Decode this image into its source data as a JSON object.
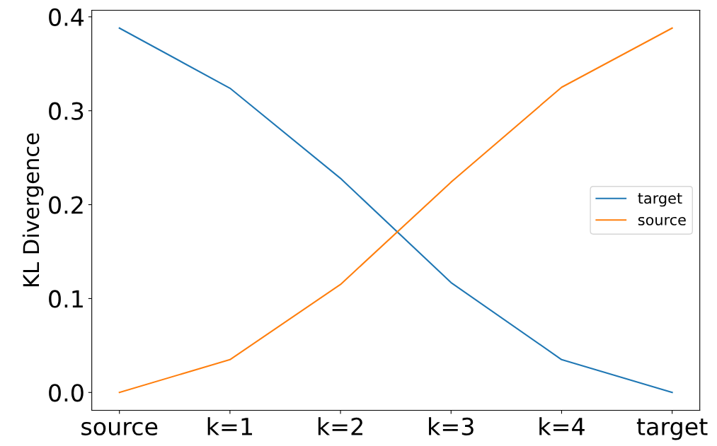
{
  "chart_data": {
    "type": "line",
    "ylabel": "KL Divergence",
    "categories": [
      "source",
      "k=1",
      "k=2",
      "k=3",
      "k=4",
      "target"
    ],
    "series": [
      {
        "name": "target",
        "color": "#1f77b4",
        "values": [
          0.388,
          0.324,
          0.228,
          0.117,
          0.035,
          0.0
        ]
      },
      {
        "name": "source",
        "color": "#ff7f0e",
        "values": [
          0.0,
          0.035,
          0.115,
          0.224,
          0.325,
          0.388
        ]
      }
    ],
    "ylim": [
      -0.019,
      0.407
    ],
    "yticks": [
      {
        "value": 0,
        "label": "0.0"
      },
      0.1,
      0.2,
      0.3,
      0.4
    ],
    "grid": false,
    "legend": "right",
    "marker": "none",
    "line_style": "solid"
  }
}
